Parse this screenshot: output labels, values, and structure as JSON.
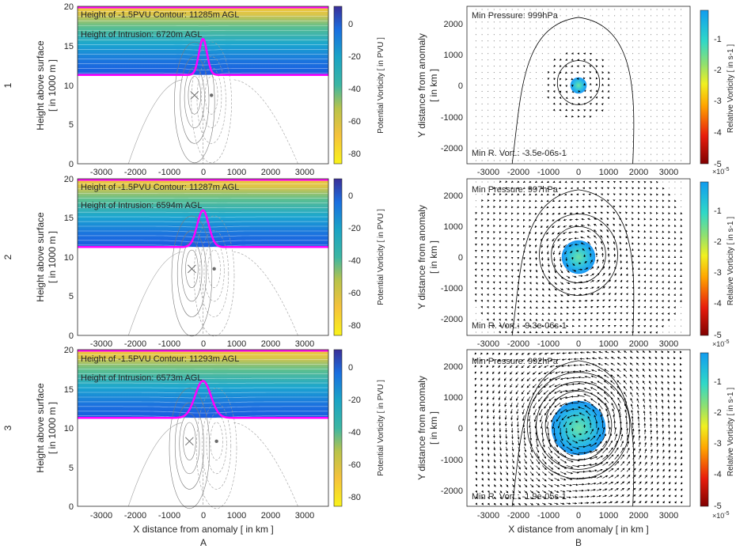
{
  "figure": {
    "column_labels": [
      "A",
      "B"
    ],
    "row_labels": [
      "1",
      "2",
      "3"
    ]
  },
  "left_axes": {
    "ylabel_line1": "Height above surface",
    "ylabel_line2": "[ in 1000 m ]",
    "xlabel": "X distance from anomaly [ in km ]",
    "xticks": [
      "-3000",
      "-2000",
      "-1000",
      "0",
      "1000",
      "2000",
      "3000"
    ],
    "yticks": [
      "0",
      "5",
      "10",
      "15",
      "20"
    ],
    "colorbar_label": "Potential Vorticity [ in PVU ]",
    "colorbar_ticks": [
      "0",
      "-20",
      "-40",
      "-60",
      "-80"
    ]
  },
  "right_axes": {
    "ylabel_line1": "Y distance from anomaly",
    "ylabel_line2": "[ in km ]",
    "xlabel": "X distance from anomaly [ in km ]",
    "xticks": [
      "-3000",
      "-2000",
      "-1000",
      "0",
      "1000",
      "2000",
      "3000"
    ],
    "yticks": [
      "2000",
      "1000",
      "0",
      "-1000",
      "-2000"
    ],
    "colorbar_label": "Relative Vorticity [ in s-1 ]",
    "colorbar_ticks": [
      "-1",
      "-2",
      "-3",
      "-4",
      "-5"
    ],
    "colorbar_exponent_base": "×10",
    "colorbar_exponent": "-5"
  },
  "chart_data": [
    {
      "type": "heatmap",
      "panel": "A1",
      "annotation_contour": "Height of -1.5PVU Contour: 11285m AGL",
      "annotation_intrusion": "Height of Intrusion: 6720m AGL",
      "xlim": [
        -3700,
        3700
      ],
      "ylim": [
        0,
        20
      ],
      "tropopause_height_km": 11.285,
      "intrusion_height_km": 6.72,
      "intrusion_halfwidth_km": 120,
      "markers": [
        {
          "type": "x",
          "x": -250,
          "y": 8.7
        },
        {
          "type": "dot",
          "x": 250,
          "y": 8.7
        }
      ]
    },
    {
      "type": "heatmap",
      "panel": "A2",
      "annotation_contour": "Height of -1.5PVU Contour: 11287m AGL",
      "annotation_intrusion": "Height of Intrusion: 6594m AGL",
      "xlim": [
        -3700,
        3700
      ],
      "ylim": [
        0,
        20
      ],
      "tropopause_height_km": 11.287,
      "intrusion_height_km": 6.594,
      "intrusion_halfwidth_km": 170,
      "markers": [
        {
          "type": "x",
          "x": -330,
          "y": 8.5
        },
        {
          "type": "dot",
          "x": 330,
          "y": 8.5
        }
      ]
    },
    {
      "type": "heatmap",
      "panel": "A3",
      "annotation_contour": "Height of -1.5PVU Contour: 11293m AGL",
      "annotation_intrusion": "Height of Intrusion: 6573m AGL",
      "xlim": [
        -3700,
        3700
      ],
      "ylim": [
        0,
        20
      ],
      "tropopause_height_km": 11.293,
      "intrusion_height_km": 6.573,
      "intrusion_halfwidth_km": 230,
      "markers": [
        {
          "type": "x",
          "x": -400,
          "y": 8.3
        },
        {
          "type": "dot",
          "x": 400,
          "y": 8.3
        }
      ]
    },
    {
      "type": "heatmap",
      "panel": "B1",
      "annotation_pressure": "Min Pressure: 999hPa",
      "annotation_vorticity": "Min R. Vort.: -3.5e-06s-1",
      "xlim": [
        -3700,
        3700
      ],
      "ylim": [
        -2500,
        2500
      ],
      "vortex_radius_km": 270,
      "min_vorticity": -0.35
    },
    {
      "type": "heatmap",
      "panel": "B2",
      "annotation_pressure": "Min Pressure: 997hPa",
      "annotation_vorticity": "Min R. Vort.: -9.3e-06s-1",
      "xlim": [
        -3700,
        3700
      ],
      "ylim": [
        -2500,
        2500
      ],
      "vortex_radius_km": 560,
      "min_vorticity": -0.93
    },
    {
      "type": "heatmap",
      "panel": "B3",
      "annotation_pressure": "Min Pressure: 992hPa",
      "annotation_vorticity": "Min R. Vort.: -1.9e-05s-1",
      "xlim": [
        -3700,
        3700
      ],
      "ylim": [
        -2500,
        2500
      ],
      "vortex_radius_km": 900,
      "min_vorticity": -1.9
    }
  ]
}
